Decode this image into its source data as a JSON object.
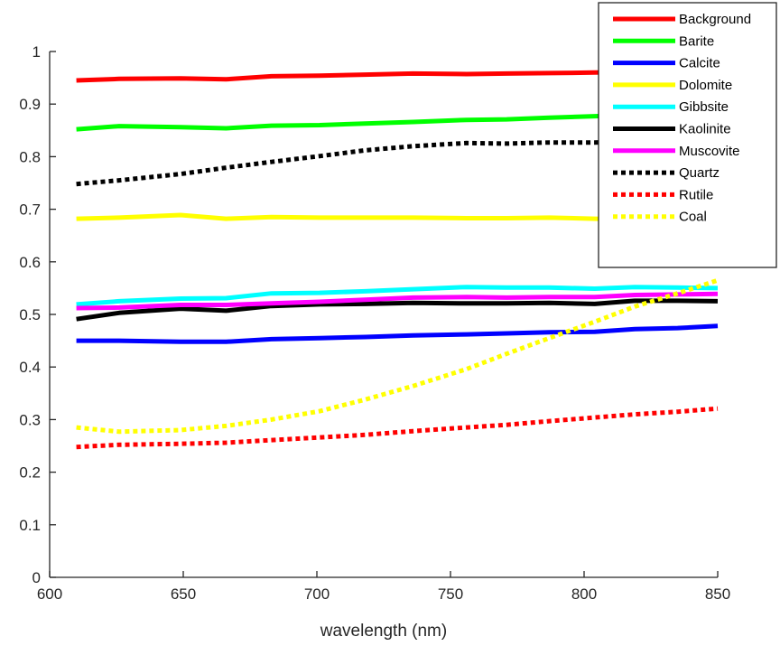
{
  "chart_data": {
    "type": "line",
    "title": "",
    "xlabel": "wavelength (nm)",
    "ylabel": "",
    "xlim": [
      600,
      850
    ],
    "ylim": [
      0,
      1
    ],
    "xticks": [
      "600",
      "650",
      "700",
      "750",
      "800",
      "850"
    ],
    "yticks": [
      "0",
      "0.1",
      "0.2",
      "0.3",
      "0.4",
      "0.5",
      "0.6",
      "0.7",
      "0.8",
      "0.9",
      "1"
    ],
    "grid": false,
    "legend_position": "top-right",
    "x": [
      610,
      626,
      649,
      666,
      683,
      701,
      718,
      736,
      756,
      771,
      787,
      804,
      819,
      835,
      850
    ],
    "series": [
      {
        "name": "Background",
        "color": "#ff0000",
        "style": "solid",
        "values": [
          0.945,
          0.948,
          0.949,
          0.947,
          0.953,
          0.954,
          0.956,
          0.958,
          0.957,
          0.958,
          0.959,
          0.96,
          0.961,
          0.962,
          0.963
        ]
      },
      {
        "name": "Barite",
        "color": "#00ff00",
        "style": "solid",
        "values": [
          0.852,
          0.858,
          0.856,
          0.854,
          0.859,
          0.86,
          0.863,
          0.866,
          0.87,
          0.871,
          0.874,
          0.877,
          0.879,
          0.881,
          0.883
        ]
      },
      {
        "name": "Calcite",
        "color": "#0000ff",
        "style": "solid",
        "values": [
          0.45,
          0.45,
          0.448,
          0.448,
          0.453,
          0.455,
          0.457,
          0.46,
          0.462,
          0.464,
          0.466,
          0.467,
          0.472,
          0.474,
          0.478
        ]
      },
      {
        "name": "Dolomite",
        "color": "#ffff00",
        "style": "solid",
        "values": [
          0.682,
          0.684,
          0.689,
          0.682,
          0.685,
          0.684,
          0.684,
          0.684,
          0.683,
          0.683,
          0.684,
          0.682,
          0.681,
          0.682,
          0.682
        ]
      },
      {
        "name": "Gibbsite",
        "color": "#00ffff",
        "style": "solid",
        "values": [
          0.519,
          0.525,
          0.53,
          0.531,
          0.54,
          0.541,
          0.544,
          0.548,
          0.552,
          0.551,
          0.551,
          0.549,
          0.552,
          0.551,
          0.55
        ]
      },
      {
        "name": "Kaolinite",
        "color": "#000000",
        "style": "solid",
        "values": [
          0.491,
          0.503,
          0.511,
          0.507,
          0.516,
          0.519,
          0.52,
          0.522,
          0.521,
          0.521,
          0.522,
          0.52,
          0.526,
          0.526,
          0.525
        ]
      },
      {
        "name": "Muscovite",
        "color": "#ff00ff",
        "style": "solid",
        "values": [
          0.512,
          0.513,
          0.518,
          0.518,
          0.521,
          0.524,
          0.528,
          0.532,
          0.533,
          0.532,
          0.533,
          0.533,
          0.537,
          0.538,
          0.539
        ]
      },
      {
        "name": "Quartz",
        "color": "#000000",
        "style": "dotted",
        "values": [
          0.748,
          0.755,
          0.767,
          0.779,
          0.79,
          0.801,
          0.812,
          0.82,
          0.826,
          0.825,
          0.827,
          0.827,
          0.828,
          0.829,
          0.83
        ]
      },
      {
        "name": "Rutile",
        "color": "#ff0000",
        "style": "dotted",
        "values": [
          0.248,
          0.252,
          0.254,
          0.256,
          0.261,
          0.266,
          0.271,
          0.278,
          0.285,
          0.29,
          0.297,
          0.304,
          0.31,
          0.315,
          0.321
        ]
      },
      {
        "name": "Coal",
        "color": "#ffff00",
        "style": "dotted",
        "values": [
          0.285,
          0.277,
          0.28,
          0.288,
          0.3,
          0.316,
          0.338,
          0.364,
          0.396,
          0.425,
          0.455,
          0.486,
          0.515,
          0.54,
          0.565
        ]
      }
    ]
  }
}
